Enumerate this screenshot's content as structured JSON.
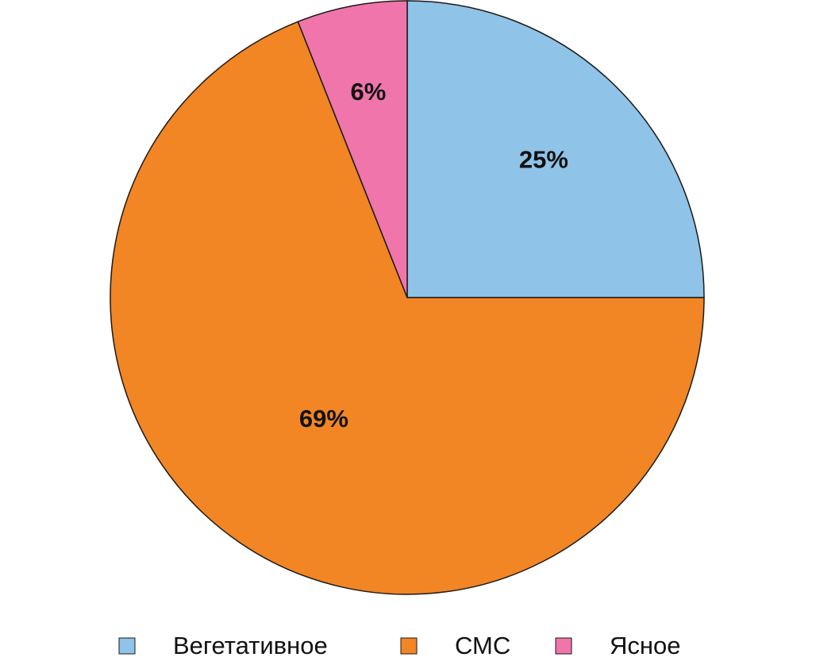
{
  "chart_data": {
    "type": "pie",
    "categories": [
      "Вегетативное",
      "СМС",
      "Ясное"
    ],
    "values": [
      25,
      69,
      6
    ],
    "value_labels": [
      "25%",
      "69%",
      "6%"
    ],
    "colors": [
      "#8fc3e8",
      "#f28524",
      "#f075ab"
    ]
  }
}
